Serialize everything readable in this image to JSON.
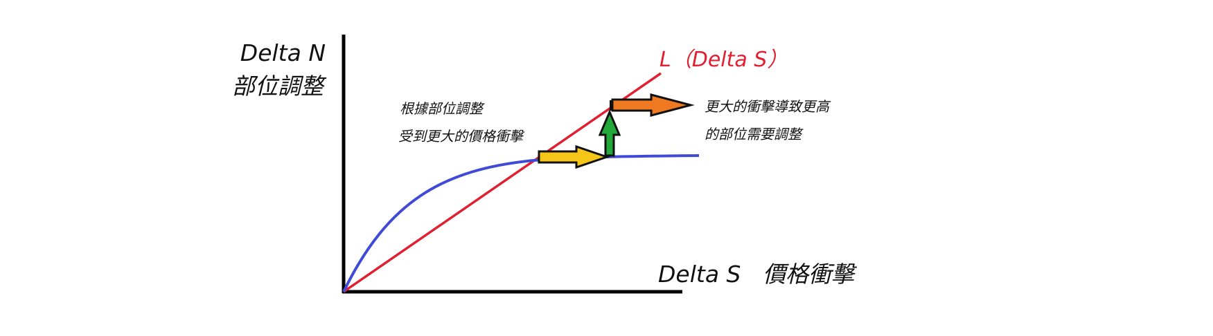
{
  "colors": {
    "background": "#ffffff",
    "axis": "#000000",
    "line_L": "#e02030",
    "curve": "#3f4bd6",
    "arrow_yellow": "#f5c518",
    "arrow_green": "#22a83a",
    "arrow_orange": "#f07a22",
    "arrow_outline": "#111111"
  },
  "y_axis": {
    "title_line1": "Delta N",
    "title_line2": "部位調整"
  },
  "x_axis": {
    "title": "Delta S   價格衝擊"
  },
  "line_L": {
    "label": "L（Delta S）"
  },
  "annotations": {
    "left_line1": "根據部位調整",
    "left_line2": "受到更大的價格衝擊",
    "right_line1": "更大的衝擊導致更高",
    "right_line2": "的部位需要調整"
  },
  "arrows": [
    {
      "name": "yellow-arrow",
      "direction": "right",
      "color": "yellow"
    },
    {
      "name": "green-arrow",
      "direction": "up",
      "color": "green"
    },
    {
      "name": "orange-arrow",
      "direction": "right",
      "color": "orange"
    }
  ]
}
